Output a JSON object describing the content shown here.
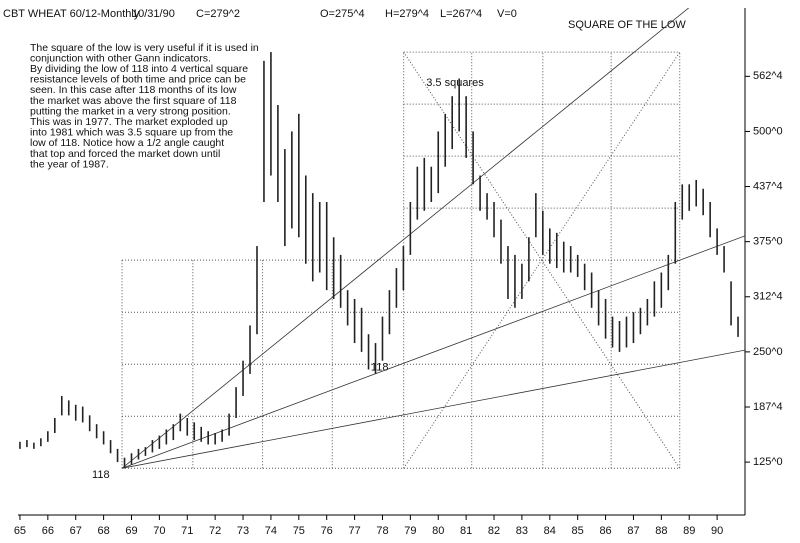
{
  "chart_data": {
    "type": "range_bar",
    "header": [
      "CBT WHEAT 60/12-Monthly",
      "10/31/90",
      "C=279^2",
      "O=275^4",
      "H=279^4",
      "L=267^4",
      "V=0"
    ],
    "title": "SQUARE OF THE LOW",
    "notes": [
      "The square of the low is very useful if it is used in",
      "conjunction with other Gann indicators.",
      "By dividing the low of 118 into 4 vertical square",
      "resistance levels of both time and price can be",
      "seen. In this case after 118 months of its low",
      "the market was above the first square of 118",
      "putting the market in a very strong position.",
      "This was in 1977. The market exploded up",
      "into 1981 which was 3.5 square up from the",
      "low of 118. Notice how a 1/2 angle caught",
      "that top and forced the market down until",
      "the year of 1987."
    ],
    "annotations": [
      {
        "text": "3.5 squares",
        "x": 80.6,
        "y": 555
      },
      {
        "text": "118",
        "x": 77.9,
        "y": 232
      },
      {
        "text": "118",
        "x": 67.9,
        "y": 110
      }
    ],
    "color": "#222222",
    "x": [
      65,
      65.25,
      65.5,
      65.75,
      66,
      66.25,
      66.5,
      66.75,
      67,
      67.25,
      67.5,
      67.75,
      68,
      68.25,
      68.5,
      68.75,
      69,
      69.25,
      69.5,
      69.75,
      70,
      70.25,
      70.5,
      70.75,
      71,
      71.25,
      71.5,
      71.75,
      72,
      72.25,
      72.5,
      72.75,
      73,
      73.25,
      73.5,
      73.75,
      74,
      74.25,
      74.5,
      74.75,
      75,
      75.25,
      75.5,
      75.75,
      76,
      76.25,
      76.5,
      76.75,
      77,
      77.25,
      77.5,
      77.75,
      78,
      78.25,
      78.5,
      78.75,
      79,
      79.25,
      79.5,
      79.75,
      80,
      80.25,
      80.5,
      80.75,
      81,
      81.25,
      81.5,
      81.75,
      82,
      82.25,
      82.5,
      82.75,
      83,
      83.25,
      83.5,
      83.75,
      84,
      84.25,
      84.5,
      84.75,
      85,
      85.25,
      85.5,
      85.75,
      86,
      86.25,
      86.5,
      86.75,
      87,
      87.25,
      87.5,
      87.75,
      88,
      88.25,
      88.5,
      88.75,
      89,
      89.25,
      89.5,
      89.75,
      90,
      90.25,
      90.5,
      90.75
    ],
    "high": [
      148,
      150,
      147,
      152,
      160,
      175,
      200,
      195,
      190,
      188,
      178,
      168,
      160,
      150,
      140,
      130,
      135,
      140,
      142,
      150,
      155,
      162,
      168,
      180,
      175,
      170,
      165,
      160,
      158,
      162,
      180,
      210,
      240,
      280,
      370,
      580,
      590,
      530,
      480,
      500,
      520,
      450,
      430,
      420,
      420,
      380,
      360,
      320,
      310,
      300,
      270,
      260,
      290,
      320,
      345,
      370,
      420,
      460,
      470,
      460,
      500,
      520,
      540,
      560,
      540,
      500,
      450,
      430,
      420,
      400,
      370,
      360,
      350,
      380,
      430,
      410,
      390,
      385,
      375,
      370,
      360,
      350,
      340,
      320,
      310,
      290,
      285,
      290,
      295,
      300,
      310,
      330,
      340,
      360,
      420,
      440,
      440,
      445,
      435,
      420,
      390,
      370,
      330,
      290
    ],
    "low": [
      140,
      142,
      140,
      143,
      148,
      158,
      178,
      178,
      172,
      170,
      160,
      152,
      145,
      135,
      125,
      118,
      122,
      128,
      132,
      136,
      140,
      145,
      150,
      160,
      155,
      150,
      148,
      145,
      145,
      148,
      155,
      175,
      200,
      225,
      270,
      420,
      450,
      420,
      370,
      390,
      380,
      350,
      330,
      340,
      320,
      310,
      300,
      280,
      260,
      250,
      230,
      225,
      240,
      270,
      300,
      320,
      360,
      400,
      410,
      420,
      430,
      460,
      480,
      500,
      470,
      440,
      410,
      400,
      380,
      350,
      310,
      300,
      310,
      330,
      380,
      360,
      350,
      345,
      340,
      340,
      335,
      320,
      300,
      280,
      265,
      255,
      250,
      255,
      260,
      270,
      280,
      290,
      300,
      320,
      350,
      400,
      410,
      415,
      405,
      380,
      360,
      340,
      280,
      267
    ],
    "square": {
      "times": [
        68.66,
        71.2,
        73.7,
        76.2,
        78.76,
        81.2,
        83.75,
        86.2,
        88.66
      ],
      "prices": [
        118,
        177,
        236,
        295,
        354,
        413,
        472,
        531,
        590
      ]
    },
    "angles": [
      {
        "from": [
          68.66,
          118
        ],
        "to": [
          91,
          692
        ]
      },
      {
        "from": [
          68.66,
          118
        ],
        "to": [
          91,
          381.6
        ]
      },
      {
        "from": [
          68.66,
          118
        ],
        "to": [
          91,
          252
        ]
      }
    ],
    "diagonals": [
      {
        "from": [
          78.76,
          590
        ],
        "to": [
          88.66,
          118
        ]
      },
      {
        "from": [
          78.76,
          118
        ],
        "to": [
          88.66,
          590
        ]
      }
    ],
    "xlim": [
      64.93,
      91
    ],
    "ylim": [
      65,
      640
    ],
    "xticks": [
      65,
      66,
      67,
      68,
      69,
      70,
      71,
      72,
      73,
      74,
      75,
      76,
      77,
      78,
      79,
      80,
      81,
      82,
      83,
      84,
      85,
      86,
      87,
      88,
      89,
      90
    ],
    "yticks": [
      {
        "value": 125,
        "label": "125^0"
      },
      {
        "value": 187.5,
        "label": "187^4"
      },
      {
        "value": 250,
        "label": "250^0"
      },
      {
        "value": 312.5,
        "label": "312^4"
      },
      {
        "value": 375,
        "label": "375^0"
      },
      {
        "value": 437.5,
        "label": "437^4"
      },
      {
        "value": 500,
        "label": "500^0"
      },
      {
        "value": 562.5,
        "label": "562^4"
      }
    ]
  }
}
